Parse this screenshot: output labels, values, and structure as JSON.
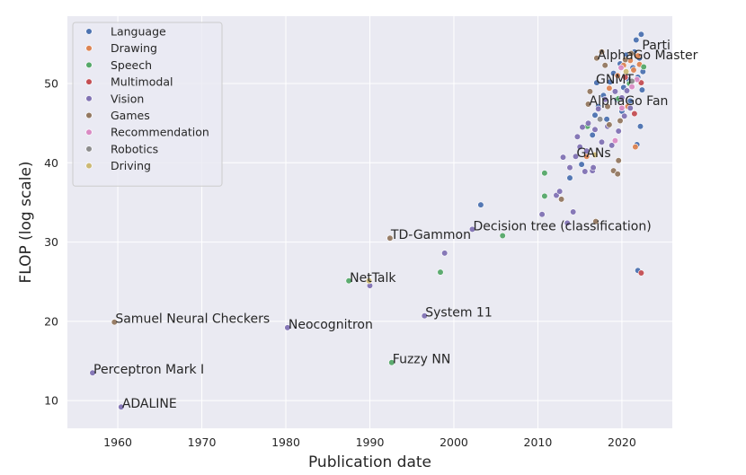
{
  "chart_data": {
    "type": "scatter",
    "title": "",
    "xlabel": "Publication date",
    "ylabel": "FLOP (log scale)",
    "xlim": [
      1954,
      2026
    ],
    "ylim": [
      6.5,
      58.5
    ],
    "xticks": [
      1960,
      1970,
      1980,
      1990,
      2000,
      2010,
      2020
    ],
    "yticks": [
      10,
      20,
      30,
      40,
      50
    ],
    "grid": true,
    "background": "#eaeaf2",
    "legend_position": "top-left",
    "series": [
      {
        "name": "Language",
        "color": "#4c72b0",
        "points": [
          [
            2003.2,
            34.7
          ],
          [
            2013.8,
            38.1
          ],
          [
            2016.5,
            43.5
          ],
          [
            2016.8,
            46.0
          ],
          [
            2017.2,
            47.1
          ],
          [
            2017.0,
            50.1
          ],
          [
            2017.8,
            48.5
          ],
          [
            2018.2,
            45.5
          ],
          [
            2018.6,
            50.2
          ],
          [
            2019.0,
            51.3
          ],
          [
            2019.4,
            48.0
          ],
          [
            2019.8,
            52.5
          ],
          [
            2020.2,
            49.5
          ],
          [
            2020.5,
            53.6
          ],
          [
            2020.8,
            50.5
          ],
          [
            2021.0,
            47.8
          ],
          [
            2021.3,
            52.0
          ],
          [
            2021.5,
            54.0
          ],
          [
            2021.7,
            55.5
          ],
          [
            2021.9,
            50.8
          ],
          [
            2022.1,
            53.2
          ],
          [
            2022.3,
            56.2
          ],
          [
            2022.4,
            49.2
          ],
          [
            2022.5,
            51.5
          ],
          [
            2021.8,
            42.3
          ],
          [
            2022.2,
            44.6
          ],
          [
            2021.9,
            26.4
          ],
          [
            2020.0,
            46.5
          ],
          [
            2015.2,
            39.8
          ]
        ]
      },
      {
        "name": "Drawing",
        "color": "#dd8452",
        "points": [
          [
            2018.5,
            49.4
          ],
          [
            2019.5,
            51.0
          ],
          [
            2020.2,
            52.3
          ],
          [
            2021.0,
            52.9
          ],
          [
            2021.4,
            51.7
          ],
          [
            2021.9,
            53.5
          ],
          [
            2022.1,
            52.4
          ],
          [
            2021.6,
            42.0
          ],
          [
            2020.7,
            47.1
          ],
          [
            2015.8,
            40.8
          ]
        ]
      },
      {
        "name": "Speech",
        "color": "#55a868",
        "points": [
          [
            1987.5,
            25.1
          ],
          [
            1992.6,
            14.8
          ],
          [
            1998.4,
            26.2
          ],
          [
            2005.8,
            30.8
          ],
          [
            2010.8,
            38.7
          ],
          [
            2010.8,
            35.8
          ],
          [
            2015.9,
            44.6
          ],
          [
            2019.6,
            48.1
          ],
          [
            2022.6,
            52.1
          ],
          [
            2020.9,
            50.0
          ]
        ]
      },
      {
        "name": "Multimodal",
        "color": "#c44e52",
        "points": [
          [
            2022.3,
            26.1
          ],
          [
            2021.5,
            46.2
          ],
          [
            2022.3,
            50.1
          ],
          [
            2020.4,
            50.8
          ]
        ]
      },
      {
        "name": "Vision",
        "color": "#8172b3",
        "points": [
          [
            1957.0,
            13.5
          ],
          [
            1960.4,
            9.2
          ],
          [
            1980.2,
            19.2
          ],
          [
            1990.0,
            24.5
          ],
          [
            1996.5,
            20.7
          ],
          [
            1998.9,
            28.6
          ],
          [
            2002.2,
            31.6
          ],
          [
            2010.5,
            33.5
          ],
          [
            2012.2,
            35.9
          ],
          [
            2012.6,
            36.4
          ],
          [
            2013.0,
            40.7
          ],
          [
            2013.5,
            32.4
          ],
          [
            2013.8,
            39.4
          ],
          [
            2014.2,
            33.8
          ],
          [
            2014.5,
            40.8
          ],
          [
            2014.7,
            43.3
          ],
          [
            2015.0,
            42.0
          ],
          [
            2015.3,
            44.5
          ],
          [
            2015.6,
            38.9
          ],
          [
            2015.8,
            41.5
          ],
          [
            2016.0,
            45.0
          ],
          [
            2016.5,
            39.0
          ],
          [
            2016.8,
            44.2
          ],
          [
            2017.2,
            46.8
          ],
          [
            2017.6,
            42.6
          ],
          [
            2018.0,
            48.0
          ],
          [
            2018.3,
            44.6
          ],
          [
            2018.8,
            42.2
          ],
          [
            2019.2,
            49.0
          ],
          [
            2019.6,
            44.0
          ],
          [
            2020.0,
            48.2
          ],
          [
            2020.3,
            45.9
          ],
          [
            2020.6,
            49.1
          ],
          [
            2021.0,
            46.9
          ],
          [
            2016.6,
            39.4
          ]
        ]
      },
      {
        "name": "Games",
        "color": "#937860",
        "points": [
          [
            1959.6,
            19.9
          ],
          [
            1992.4,
            30.5
          ],
          [
            2012.8,
            35.4
          ],
          [
            2016.2,
            49.0
          ],
          [
            2016.0,
            47.4
          ],
          [
            2016.9,
            32.6
          ],
          [
            2017.0,
            53.2
          ],
          [
            2017.6,
            54.0
          ],
          [
            2018.0,
            52.3
          ],
          [
            2018.3,
            47.1
          ],
          [
            2019.0,
            39.0
          ],
          [
            2019.5,
            38.6
          ],
          [
            2019.6,
            40.3
          ],
          [
            2019.8,
            45.3
          ],
          [
            2020.4,
            53.0
          ],
          [
            2021.1,
            53.8
          ],
          [
            2018.5,
            44.8
          ]
        ]
      },
      {
        "name": "Recommendation",
        "color": "#da8bc3",
        "points": [
          [
            2019.2,
            42.8
          ],
          [
            2020.0,
            46.9
          ],
          [
            2021.2,
            49.6
          ],
          [
            2021.8,
            50.5
          ],
          [
            2019.9,
            52.0
          ]
        ]
      },
      {
        "name": "Robotics",
        "color": "#8c8c8c",
        "points": [
          [
            2017.4,
            45.5
          ],
          [
            2021.2,
            50.3
          ]
        ]
      },
      {
        "name": "Driving",
        "color": "#ccb974",
        "points": [
          [
            1989.9,
            25.1
          ],
          [
            2016.8,
            41.0
          ],
          [
            2020.5,
            51.5
          ]
        ]
      }
    ],
    "annotations": [
      {
        "text": "Perceptron Mark I",
        "x": 1957.0,
        "y": 13.5
      },
      {
        "text": "ADALINE",
        "x": 1960.4,
        "y": 9.2
      },
      {
        "text": "Samuel Neural Checkers",
        "x": 1959.6,
        "y": 19.9
      },
      {
        "text": "Neocognitron",
        "x": 1980.2,
        "y": 19.2
      },
      {
        "text": "NetTalk",
        "x": 1987.5,
        "y": 25.1
      },
      {
        "text": "TD-Gammon",
        "x": 1992.4,
        "y": 30.5
      },
      {
        "text": "Fuzzy NN",
        "x": 1992.6,
        "y": 14.8
      },
      {
        "text": "System 11",
        "x": 1996.5,
        "y": 20.7
      },
      {
        "text": "Decision tree (classification)",
        "x": 2002.2,
        "y": 31.6
      },
      {
        "text": "GANs",
        "x": 2014.5,
        "y": 40.8
      },
      {
        "text": "AlphaGo Fan",
        "x": 2016.0,
        "y": 47.4
      },
      {
        "text": "GNMT",
        "x": 2016.8,
        "y": 50.1
      },
      {
        "text": "AlphaGo Master",
        "x": 2017.0,
        "y": 53.2
      },
      {
        "text": "Parti",
        "x": 2022.3,
        "y": 54.4
      }
    ]
  }
}
